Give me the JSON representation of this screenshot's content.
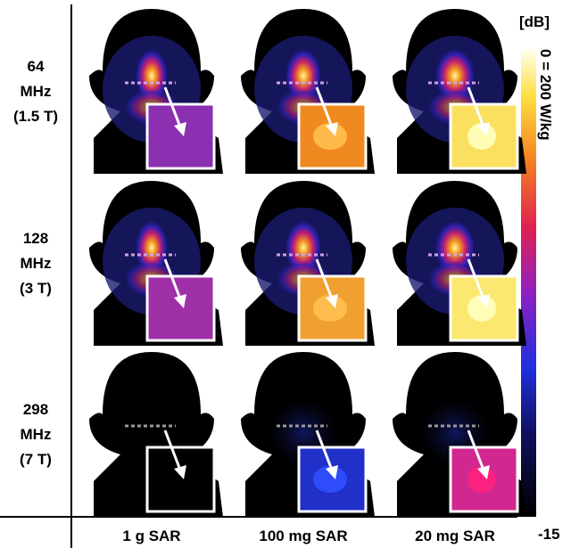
{
  "rows": [
    {
      "lines": [
        "64",
        "MHz",
        "(1.5 T)"
      ]
    },
    {
      "lines": [
        "128",
        "MHz",
        "(3 T)"
      ]
    },
    {
      "lines": [
        "298",
        "MHz",
        "(7 T)"
      ]
    }
  ],
  "columns": [
    "1 g SAR",
    "100 mg SAR",
    "20 mg SAR"
  ],
  "colorbar": {
    "unit": "[dB]",
    "top_label": "0 = 200 W/kg",
    "bottom_label": "-15"
  }
}
